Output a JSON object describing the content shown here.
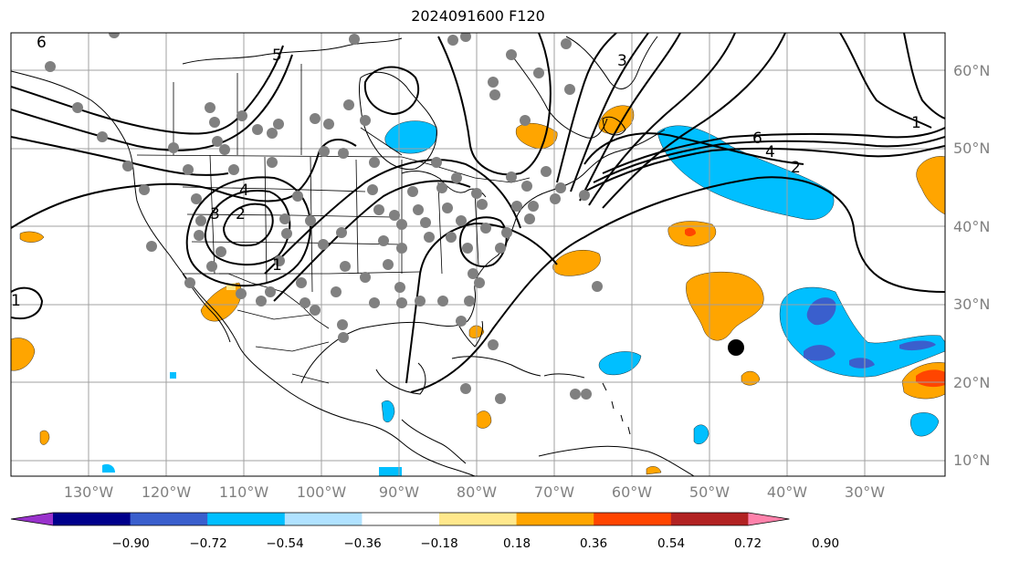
{
  "title": "2024091600 F120",
  "longitude_labels": [
    "130°W",
    "120°W",
    "110°W",
    "100°W",
    "90°W",
    "80°W",
    "70°W",
    "60°W",
    "50°W",
    "40°W",
    "30°W"
  ],
  "latitude_labels": [
    "60°N",
    "50°N",
    "40°N",
    "30°N",
    "20°N",
    "10°N"
  ],
  "colorbar": {
    "ticks": [
      "−0.90",
      "−0.72",
      "−0.54",
      "−0.36",
      "−0.18",
      "0.18",
      "0.36",
      "0.54",
      "0.72",
      "0.90"
    ],
    "colors": [
      "#9932cc",
      "#00008b",
      "#3a5fcd",
      "#00bfff",
      "#b0e2ff",
      "#ffffff",
      "#ffe88c",
      "#ffa500",
      "#ff4500",
      "#b22222",
      "#ff82ab"
    ],
    "under_color": "#9932cc",
    "over_color": "#ff82ab"
  },
  "contour_labels": [
    "6",
    "5",
    "4",
    "3",
    "2",
    "1",
    "6",
    "4",
    "2",
    "1",
    "1",
    "3"
  ],
  "colors": {
    "contour": "#000000",
    "station_dots": "#808080",
    "grid": "#a0a0a0",
    "storm_marker": "#000000"
  }
}
